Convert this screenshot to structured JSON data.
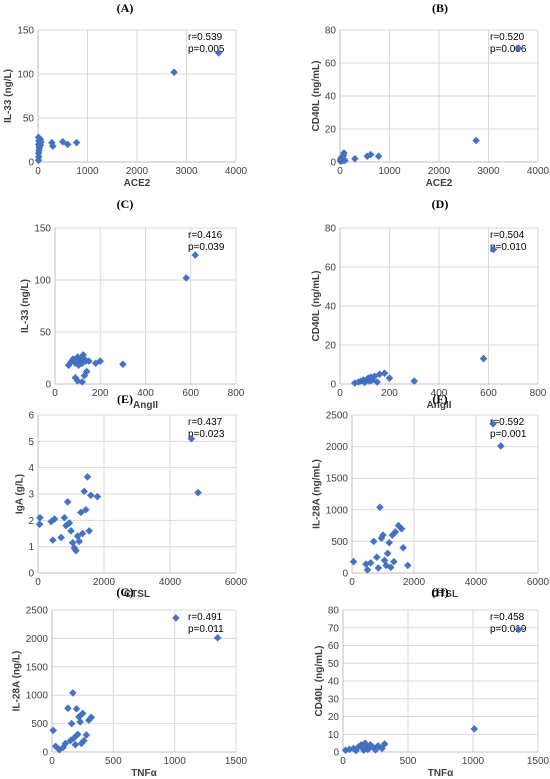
{
  "chart_data": [
    {
      "type": "scatter",
      "panel": "(A)",
      "xlabel": "ACE2",
      "ylabel": "IL-33 (ng/L)",
      "xlim": [
        0,
        4000
      ],
      "ylim": [
        0,
        150
      ],
      "xticks": [
        0,
        1000,
        2000,
        3000,
        4000
      ],
      "yticks": [
        0,
        50,
        100,
        150
      ],
      "stats": [
        "r=0.539",
        "p=0.005"
      ],
      "points": [
        [
          10,
          2
        ],
        [
          15,
          6
        ],
        [
          12,
          10
        ],
        [
          20,
          13
        ],
        [
          25,
          16
        ],
        [
          30,
          18
        ],
        [
          15,
          20
        ],
        [
          35,
          21
        ],
        [
          40,
          22
        ],
        [
          20,
          24
        ],
        [
          45,
          26
        ],
        [
          10,
          28
        ],
        [
          50,
          19
        ],
        [
          60,
          23
        ],
        [
          280,
          22
        ],
        [
          300,
          18
        ],
        [
          500,
          23
        ],
        [
          600,
          20
        ],
        [
          780,
          22
        ],
        [
          2750,
          102
        ],
        [
          3650,
          124
        ]
      ]
    },
    {
      "type": "scatter",
      "panel": "(B)",
      "xlabel": "ACE2",
      "ylabel": "CD40L (ng/mL)",
      "xlim": [
        0,
        4000
      ],
      "ylim": [
        0,
        80
      ],
      "xticks": [
        0,
        1000,
        2000,
        3000,
        4000
      ],
      "yticks": [
        0,
        20,
        40,
        60,
        80
      ],
      "stats": [
        "r=0.520",
        "p=0.006"
      ],
      "points": [
        [
          10,
          0.5
        ],
        [
          20,
          1
        ],
        [
          15,
          1.5
        ],
        [
          30,
          2
        ],
        [
          25,
          2.5
        ],
        [
          40,
          3
        ],
        [
          50,
          0.8
        ],
        [
          60,
          1.2
        ],
        [
          70,
          4
        ],
        [
          80,
          5.5
        ],
        [
          100,
          1
        ],
        [
          300,
          2
        ],
        [
          550,
          3.5
        ],
        [
          620,
          4.5
        ],
        [
          780,
          3.5
        ],
        [
          2750,
          13
        ],
        [
          3600,
          69
        ]
      ]
    },
    {
      "type": "scatter",
      "panel": "(C)",
      "xlabel": "AngII",
      "ylabel": "IL-33 (ng/L)",
      "xlim": [
        0,
        800
      ],
      "ylim": [
        0,
        150
      ],
      "xticks": [
        0,
        200,
        400,
        600,
        800
      ],
      "yticks": [
        0,
        50,
        100,
        150
      ],
      "stats": [
        "r=0.416",
        "p=0.039"
      ],
      "points": [
        [
          60,
          18
        ],
        [
          70,
          21
        ],
        [
          80,
          24
        ],
        [
          90,
          20
        ],
        [
          95,
          22
        ],
        [
          100,
          26
        ],
        [
          105,
          18
        ],
        [
          110,
          22
        ],
        [
          115,
          25
        ],
        [
          120,
          20
        ],
        [
          125,
          28
        ],
        [
          130,
          24
        ],
        [
          135,
          22
        ],
        [
          140,
          12
        ],
        [
          150,
          22
        ],
        [
          90,
          6
        ],
        [
          100,
          3
        ],
        [
          120,
          2
        ],
        [
          130,
          8
        ],
        [
          180,
          20
        ],
        [
          200,
          22
        ],
        [
          300,
          19
        ],
        [
          580,
          102
        ],
        [
          620,
          124
        ]
      ]
    },
    {
      "type": "scatter",
      "panel": "(D)",
      "xlabel": "AngII",
      "ylabel": "CD40L (ng/mL)",
      "xlim": [
        0,
        800
      ],
      "ylim": [
        0,
        80
      ],
      "xticks": [
        0,
        200,
        400,
        600,
        800
      ],
      "yticks": [
        0,
        20,
        40,
        60,
        80
      ],
      "stats": [
        "r=0.504",
        "p=0.010"
      ],
      "points": [
        [
          60,
          0.5
        ],
        [
          75,
          1
        ],
        [
          85,
          1.5
        ],
        [
          95,
          2
        ],
        [
          100,
          0.8
        ],
        [
          110,
          2.5
        ],
        [
          115,
          3
        ],
        [
          120,
          1.5
        ],
        [
          125,
          3.5
        ],
        [
          130,
          2
        ],
        [
          140,
          4
        ],
        [
          150,
          1
        ],
        [
          160,
          5
        ],
        [
          180,
          5.5
        ],
        [
          200,
          3
        ],
        [
          300,
          1.5
        ],
        [
          580,
          13
        ],
        [
          620,
          69
        ]
      ]
    },
    {
      "type": "scatter",
      "panel": "(E)",
      "xlabel": "CTSL",
      "ylabel": "IgA (g/L)",
      "xlim": [
        0,
        6000
      ],
      "ylim": [
        0,
        6
      ],
      "xticks": [
        0,
        2000,
        4000,
        6000
      ],
      "yticks": [
        0,
        1,
        2,
        3,
        4,
        5,
        6
      ],
      "stats": [
        "r=0.437",
        "p=0.023"
      ],
      "points": [
        [
          50,
          1.85
        ],
        [
          60,
          2.1
        ],
        [
          400,
          1.95
        ],
        [
          450,
          1.25
        ],
        [
          500,
          2.05
        ],
        [
          700,
          1.35
        ],
        [
          800,
          2.1
        ],
        [
          850,
          1.8
        ],
        [
          900,
          2.7
        ],
        [
          950,
          1.9
        ],
        [
          1000,
          1.6
        ],
        [
          1050,
          1.15
        ],
        [
          1100,
          0.95
        ],
        [
          1150,
          0.85
        ],
        [
          1200,
          1.4
        ],
        [
          1250,
          1.2
        ],
        [
          1300,
          2.3
        ],
        [
          1350,
          1.5
        ],
        [
          1400,
          3.1
        ],
        [
          1450,
          2.4
        ],
        [
          1500,
          3.65
        ],
        [
          1550,
          1.6
        ],
        [
          1600,
          2.95
        ],
        [
          1800,
          2.9
        ],
        [
          4650,
          5.1
        ],
        [
          4850,
          3.05
        ]
      ]
    },
    {
      "type": "scatter",
      "panel": "(F)",
      "xlabel": "CTSL",
      "ylabel": "IL-28A (ng/mL)",
      "xlim": [
        0,
        6000
      ],
      "ylim": [
        0,
        2500
      ],
      "xticks": [
        0,
        2000,
        4000,
        6000
      ],
      "yticks": [
        0,
        500,
        1000,
        1500,
        2000,
        2500
      ],
      "stats": [
        "r=0.592",
        "p=0.001"
      ],
      "points": [
        [
          50,
          180
        ],
        [
          450,
          140
        ],
        [
          500,
          50
        ],
        [
          600,
          160
        ],
        [
          700,
          500
        ],
        [
          800,
          250
        ],
        [
          850,
          80
        ],
        [
          900,
          1040
        ],
        [
          950,
          550
        ],
        [
          1000,
          600
        ],
        [
          1050,
          200
        ],
        [
          1100,
          120
        ],
        [
          1150,
          310
        ],
        [
          1200,
          480
        ],
        [
          1250,
          90
        ],
        [
          1300,
          600
        ],
        [
          1350,
          180
        ],
        [
          1400,
          650
        ],
        [
          1500,
          750
        ],
        [
          1600,
          700
        ],
        [
          1650,
          400
        ],
        [
          1800,
          120
        ],
        [
          4550,
          2360
        ],
        [
          4800,
          2010
        ]
      ]
    },
    {
      "type": "scatter",
      "panel": "(G)",
      "xlabel": "TNFα",
      "ylabel": "IL-28A (ng/L)",
      "xlim": [
        0,
        1500
      ],
      "ylim": [
        0,
        2500
      ],
      "xticks": [
        0,
        500,
        1000,
        1500
      ],
      "yticks": [
        0,
        500,
        1000,
        1500,
        2000,
        2500
      ],
      "stats": [
        "r=0.491",
        "p=0.011"
      ],
      "points": [
        [
          10,
          380
        ],
        [
          30,
          100
        ],
        [
          60,
          40
        ],
        [
          90,
          80
        ],
        [
          110,
          150
        ],
        [
          130,
          770
        ],
        [
          150,
          200
        ],
        [
          160,
          500
        ],
        [
          170,
          1040
        ],
        [
          180,
          250
        ],
        [
          190,
          130
        ],
        [
          200,
          760
        ],
        [
          210,
          310
        ],
        [
          220,
          620
        ],
        [
          230,
          530
        ],
        [
          240,
          150
        ],
        [
          250,
          680
        ],
        [
          260,
          200
        ],
        [
          280,
          300
        ],
        [
          300,
          560
        ],
        [
          320,
          610
        ],
        [
          1010,
          2360
        ],
        [
          1350,
          2010
        ]
      ]
    },
    {
      "type": "scatter",
      "panel": "(H)",
      "xlabel": "TNFα",
      "ylabel": "CD40L (ng/mL)",
      "xlim": [
        0,
        1500
      ],
      "ylim": [
        0,
        80
      ],
      "xticks": [
        0,
        500,
        1000,
        1500
      ],
      "yticks": [
        0,
        10,
        20,
        30,
        40,
        50,
        60,
        70,
        80
      ],
      "stats": [
        "r=0.458",
        "p=0.019"
      ],
      "points": [
        [
          20,
          1
        ],
        [
          50,
          1.5
        ],
        [
          80,
          2
        ],
        [
          100,
          0.8
        ],
        [
          120,
          3
        ],
        [
          140,
          4
        ],
        [
          150,
          2.5
        ],
        [
          160,
          1
        ],
        [
          170,
          5
        ],
        [
          180,
          3.5
        ],
        [
          190,
          1.5
        ],
        [
          200,
          2
        ],
        [
          210,
          4
        ],
        [
          230,
          2.8
        ],
        [
          250,
          1.2
        ],
        [
          270,
          3.5
        ],
        [
          300,
          2
        ],
        [
          320,
          4.5
        ],
        [
          1010,
          13
        ],
        [
          1350,
          69
        ]
      ]
    }
  ]
}
